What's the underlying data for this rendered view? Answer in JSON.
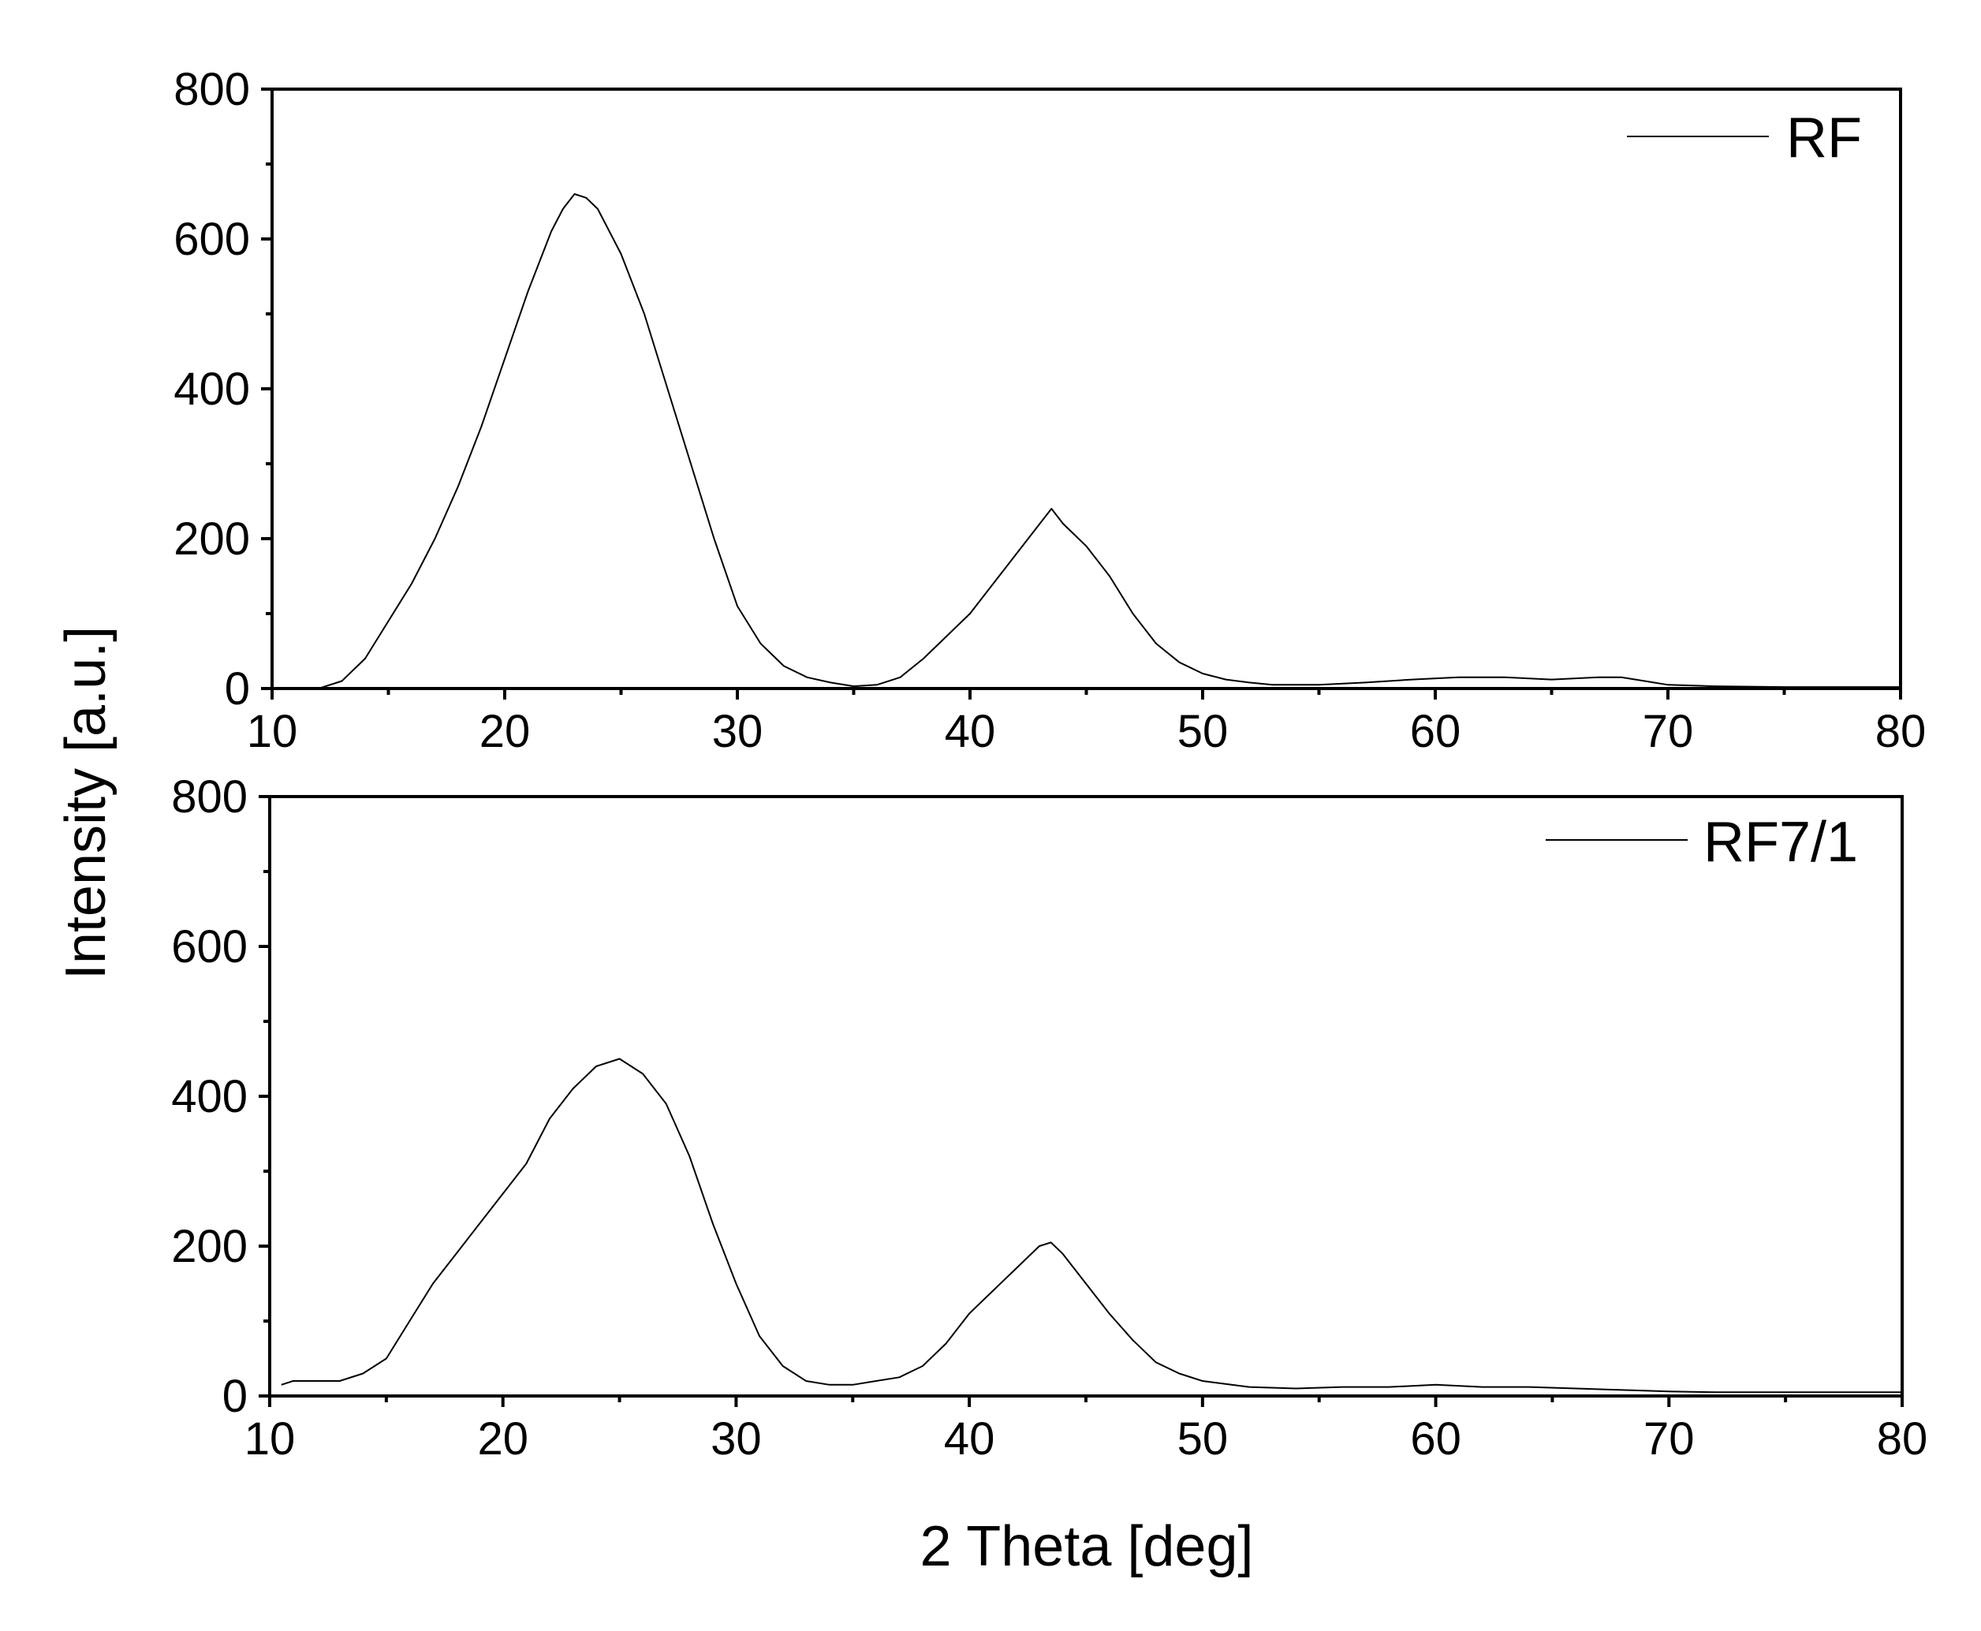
{
  "ylabel": "Intensity [a.u.]",
  "xlabel": "2 Theta [deg]",
  "chart_data": [
    {
      "type": "line",
      "title": "",
      "xlabel": "2 Theta [deg]",
      "ylabel": "Intensity [a.u.]",
      "xlim": [
        10,
        80
      ],
      "ylim": [
        0,
        800
      ],
      "xticks": [
        "10",
        "20",
        "30",
        "40",
        "50",
        "60",
        "70",
        "80"
      ],
      "yticks": [
        "0",
        "200",
        "400",
        "600",
        "800"
      ],
      "legend": "top-right",
      "series": [
        {
          "name": "RF",
          "color": "#000000",
          "x": [
            10,
            12,
            13,
            14,
            15,
            16,
            17,
            18,
            19,
            20,
            21,
            22,
            22.5,
            23,
            23.5,
            24,
            25,
            26,
            27,
            28,
            29,
            30,
            31,
            32,
            33,
            34,
            35,
            36,
            37,
            38,
            39,
            40,
            41,
            42,
            43,
            43.5,
            44,
            45,
            46,
            47,
            48,
            49,
            50,
            51,
            52,
            53,
            55,
            57,
            59,
            61,
            63,
            65,
            67,
            68,
            69,
            70,
            72,
            75,
            78,
            80
          ],
          "y": [
            0,
            0,
            10,
            40,
            90,
            140,
            200,
            270,
            350,
            440,
            530,
            610,
            640,
            660,
            655,
            640,
            580,
            500,
            400,
            300,
            200,
            110,
            60,
            30,
            15,
            8,
            3,
            5,
            15,
            40,
            70,
            100,
            140,
            180,
            220,
            240,
            220,
            190,
            150,
            100,
            60,
            35,
            20,
            12,
            8,
            5,
            5,
            8,
            12,
            15,
            15,
            12,
            15,
            15,
            10,
            5,
            3,
            2,
            2,
            2
          ]
        }
      ]
    },
    {
      "type": "line",
      "title": "",
      "xlabel": "2 Theta [deg]",
      "ylabel": "Intensity [a.u.]",
      "xlim": [
        10,
        80
      ],
      "ylim": [
        0,
        800
      ],
      "xticks": [
        "10",
        "20",
        "30",
        "40",
        "50",
        "60",
        "70",
        "80"
      ],
      "yticks": [
        "0",
        "200",
        "400",
        "600",
        "800"
      ],
      "legend": "top-right",
      "series": [
        {
          "name": "RF7/1",
          "color": "#000000",
          "x": [
            10.5,
            11,
            12,
            13,
            14,
            15,
            16,
            17,
            18,
            19,
            20,
            21,
            22,
            23,
            24,
            25,
            26,
            27,
            28,
            29,
            30,
            31,
            32,
            33,
            34,
            35,
            36,
            37,
            38,
            39,
            40,
            41,
            42,
            43,
            43.5,
            44,
            45,
            46,
            47,
            48,
            49,
            50,
            52,
            54,
            56,
            58,
            60,
            62,
            64,
            66,
            68,
            70,
            72,
            75,
            78,
            80
          ],
          "y": [
            15,
            20,
            20,
            20,
            30,
            50,
            100,
            150,
            190,
            230,
            270,
            310,
            370,
            410,
            440,
            450,
            430,
            390,
            320,
            230,
            150,
            80,
            40,
            20,
            15,
            15,
            20,
            25,
            40,
            70,
            110,
            140,
            170,
            200,
            205,
            190,
            150,
            110,
            75,
            45,
            30,
            20,
            12,
            10,
            12,
            12,
            15,
            12,
            12,
            10,
            8,
            6,
            5,
            5,
            5,
            5
          ]
        }
      ]
    }
  ]
}
